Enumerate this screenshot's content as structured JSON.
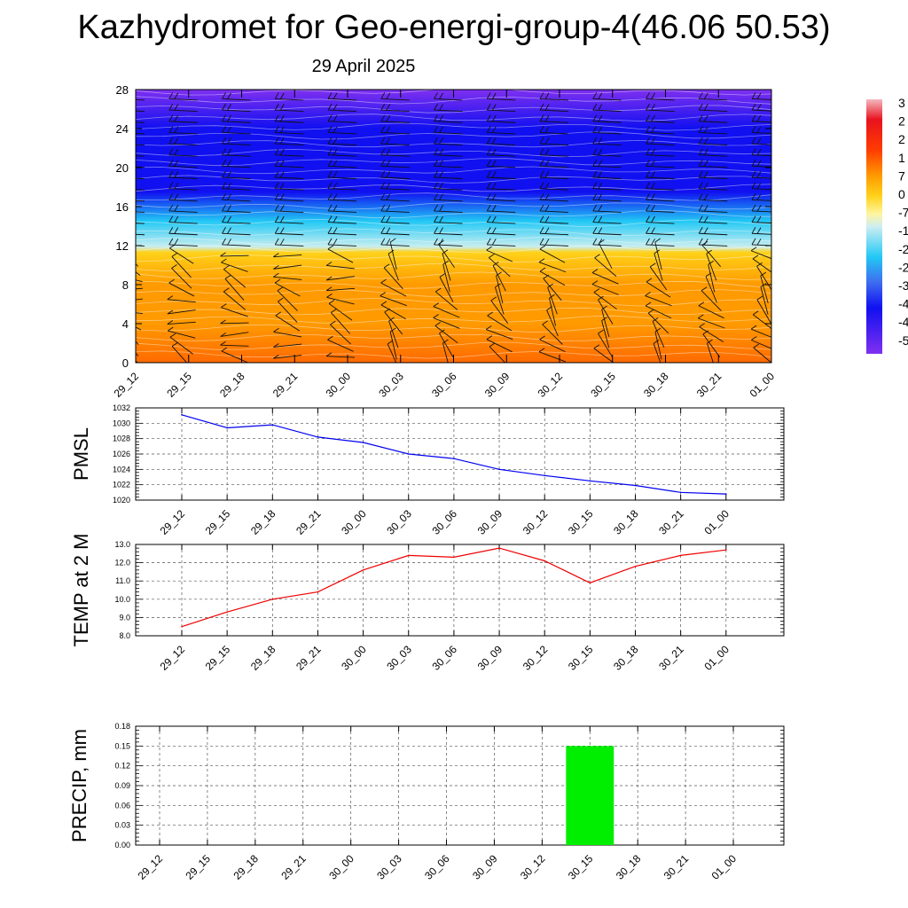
{
  "title": "Kazhydromet for Geo-energi-group-4(46.06 50.53)",
  "subtitle": "29 April 2025",
  "chart_data": [
    {
      "type": "heatmap",
      "name": "vertical-cross-section",
      "x_labels": [
        "29_12",
        "29_15",
        "29_18",
        "29_21",
        "30_00",
        "30_03",
        "30_06",
        "30_09",
        "30_12",
        "30_15",
        "30_18",
        "30_21",
        "01_00"
      ],
      "y_ticks": [
        0,
        4,
        8,
        12,
        16,
        20,
        24,
        28
      ],
      "ylim": [
        0,
        28
      ],
      "colorbar_labels": [
        "3",
        "2",
        "2",
        "1",
        "7",
        "0",
        "-7",
        "-1",
        "-2",
        "-2",
        "-3",
        "-4",
        "-4",
        "-5"
      ],
      "colors": {
        "bottom": "#ff6a00",
        "warm": "#ff9a00",
        "yellow": "#ffd21a",
        "pale": "#c8eef0",
        "cyan": "#22c8f5",
        "blue": "#1010f0",
        "violet": "#7f30f0"
      }
    },
    {
      "type": "line",
      "name": "pmsl",
      "ylabel": "PMSL",
      "categories": [
        "29_12",
        "29_15",
        "29_18",
        "29_21",
        "30_00",
        "30_03",
        "30_06",
        "30_09",
        "30_12",
        "30_15",
        "30_18",
        "30_21",
        "01_00"
      ],
      "values": [
        1031.1,
        1029.4,
        1029.8,
        1028.2,
        1027.5,
        1026.0,
        1025.4,
        1024.0,
        1023.2,
        1022.5,
        1021.9,
        1021.0,
        1020.8
      ],
      "ylim": [
        1020,
        1032
      ],
      "y_ticks": [
        1020,
        1022,
        1024,
        1026,
        1028,
        1030,
        1032
      ],
      "y_tick_labels": [
        "1020",
        "1022",
        "1024",
        "1026",
        "1028",
        "1030",
        "1032"
      ],
      "color": "#0000ee",
      "grid": true
    },
    {
      "type": "line",
      "name": "temp-2m",
      "ylabel": "TEMP at 2 M",
      "categories": [
        "29_12",
        "29_15",
        "29_18",
        "29_21",
        "30_00",
        "30_03",
        "30_06",
        "30_09",
        "30_12",
        "30_15",
        "30_18",
        "30_21",
        "01_00"
      ],
      "values": [
        8.5,
        9.3,
        10.0,
        10.4,
        11.6,
        12.4,
        12.3,
        12.8,
        12.1,
        10.9,
        11.8,
        12.4,
        12.7
      ],
      "ylim": [
        8,
        13
      ],
      "y_ticks": [
        8,
        9,
        10,
        11,
        12,
        13
      ],
      "y_tick_labels": [
        "8.0",
        "9.0",
        "10.0",
        "11.0",
        "12.0",
        "13.0"
      ],
      "color": "#ee0000",
      "grid": true
    },
    {
      "type": "bar",
      "name": "precip",
      "ylabel": "PRECIP, mm",
      "categories": [
        "29_12",
        "29_15",
        "29_18",
        "29_21",
        "30_00",
        "30_03",
        "30_06",
        "30_09",
        "30_12",
        "30_15",
        "30_18",
        "30_21",
        "01_00"
      ],
      "values": [
        0,
        0,
        0,
        0,
        0,
        0,
        0,
        0,
        0,
        0.15,
        0,
        0,
        0
      ],
      "ylim": [
        0,
        0.18
      ],
      "y_ticks": [
        0,
        0.03,
        0.06,
        0.09,
        0.12,
        0.15,
        0.18
      ],
      "y_tick_labels": [
        "0.00",
        "0.03",
        "0.06",
        "0.09",
        "0.12",
        "0.15",
        "0.18"
      ],
      "color": "#00ee00",
      "grid": true
    }
  ]
}
